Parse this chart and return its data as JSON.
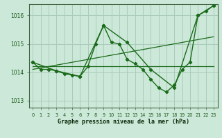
{
  "xlabel": "Graphe pression niveau de la mer (hPa)",
  "ylabel": "",
  "bg_color": "#cce8d8",
  "grid_color": "#aaccbc",
  "line_color": "#1a6b1a",
  "ylim": [
    1012.75,
    1016.4
  ],
  "xlim": [
    -0.5,
    23.5
  ],
  "yticks": [
    1013,
    1014,
    1015,
    1016
  ],
  "xticks": [
    0,
    1,
    2,
    3,
    4,
    5,
    6,
    7,
    8,
    9,
    10,
    11,
    12,
    13,
    14,
    15,
    16,
    17,
    18,
    19,
    20,
    21,
    22,
    23
  ],
  "line1_x": [
    0,
    1,
    2,
    3,
    4,
    5,
    6,
    7,
    8,
    9,
    10,
    11,
    12,
    13,
    14,
    15,
    16,
    17,
    18,
    19,
    20,
    21,
    22,
    23
  ],
  "line1_y": [
    1014.35,
    1014.1,
    1014.1,
    1014.05,
    1013.95,
    1013.9,
    1013.85,
    1014.2,
    1015.0,
    1015.65,
    1015.05,
    1015.0,
    1014.45,
    1014.3,
    1014.1,
    1013.75,
    1013.45,
    1013.3,
    1013.55,
    1014.1,
    1014.35,
    1016.0,
    1016.15,
    1016.35
  ],
  "line2_x": [
    0,
    3,
    6,
    9,
    12,
    15,
    18,
    21,
    23
  ],
  "line2_y": [
    1014.35,
    1014.05,
    1013.85,
    1015.65,
    1015.05,
    1014.1,
    1013.45,
    1016.0,
    1016.35
  ],
  "line3_x": [
    0,
    23
  ],
  "line3_y": [
    1014.2,
    1014.2
  ],
  "line4_x": [
    0,
    23
  ],
  "line4_y": [
    1014.1,
    1015.25
  ]
}
